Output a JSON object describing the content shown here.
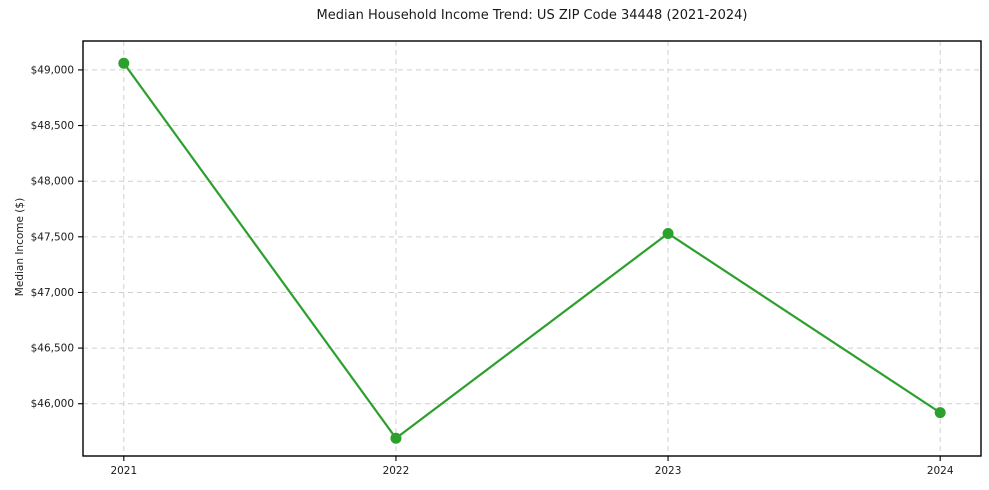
{
  "chart_data": {
    "type": "line",
    "title": "Median Household Income Trend: US ZIP Code 34448 (2021-2024)",
    "xlabel": "",
    "ylabel": "Median Income ($)",
    "categories": [
      "2021",
      "2022",
      "2023",
      "2024"
    ],
    "series": [
      {
        "name": "Median Household Income",
        "values": [
          49060,
          45690,
          47530,
          45920
        ]
      }
    ],
    "ylim": [
      45530,
      49260
    ],
    "xlim": [
      2020.85,
      2024.15
    ],
    "yticks": {
      "values": [
        46000,
        46500,
        47000,
        47500,
        48000,
        48500,
        49000
      ],
      "labels": [
        "$46,000",
        "$46,500",
        "$47,000",
        "$47,500",
        "$48,000",
        "$48,500",
        "$49,000"
      ]
    },
    "grid": true,
    "grid_style": "dashed",
    "legend_position": "none",
    "colors": {
      "line": "#2ca02c",
      "marker": "#2ca02c",
      "grid": "#cfcfcf",
      "axis": "#000000",
      "text": "#1a1a1a",
      "background": "#ffffff"
    },
    "marker_style": "circle",
    "line_width": 2.2,
    "marker_radius": 5.5
  }
}
